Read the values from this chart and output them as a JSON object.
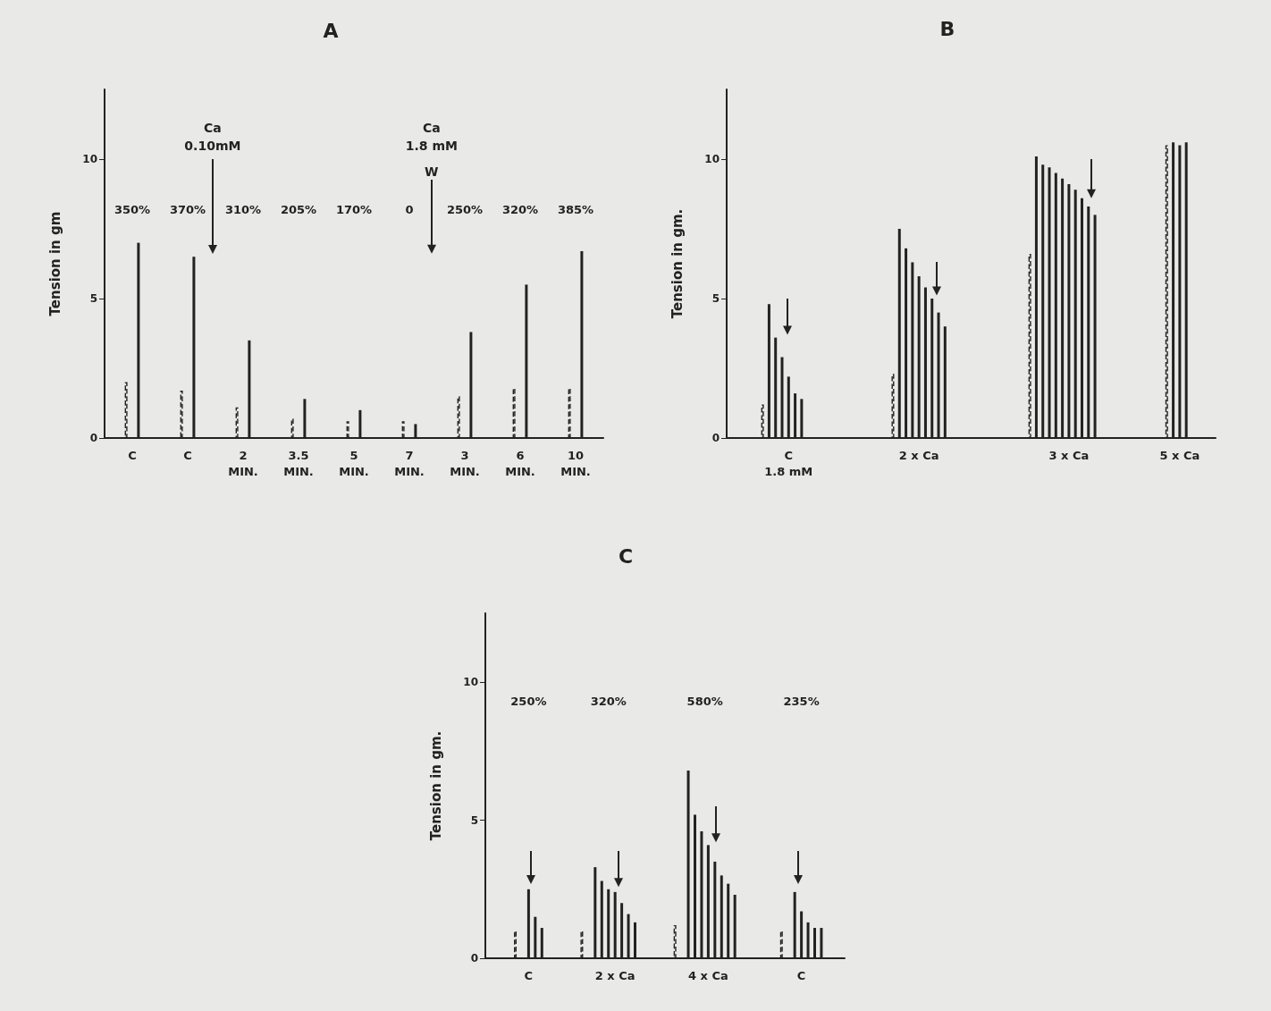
{
  "chart_data": [
    {
      "type": "bar",
      "title": "A",
      "ylabel": "Tension in gm",
      "categories": [
        "C",
        "C",
        "2\nMIN.",
        "3.5\nMIN.",
        "5\nMIN.",
        "7\nMIN.",
        "3\nMIN.",
        "6\nMIN.",
        "10\nMIN."
      ],
      "series": [
        {
          "color": "#222222",
          "line_style": "dashed",
          "values": [
            2.0,
            1.7,
            1.1,
            0.7,
            0.6,
            0.6,
            1.5,
            1.8,
            1.8
          ]
        },
        {
          "color": "#222222",
          "line_style": "solid",
          "values": [
            7.0,
            6.5,
            3.5,
            1.4,
            1.0,
            0.5,
            3.8,
            5.5,
            6.7
          ]
        }
      ],
      "ylim": [
        0,
        12.5
      ],
      "yticks": [
        0,
        5,
        10
      ],
      "annotations": [
        "350%",
        "370%",
        "310%",
        "205%",
        "170%",
        "0",
        "250%",
        "320%",
        "385%",
        "Ca\n0.10mM",
        "Ca\n1.8 mM",
        "W"
      ]
    },
    {
      "type": "bar",
      "title": "B",
      "ylabel": "Tension in gm.",
      "categories": [
        null,
        null,
        null,
        null,
        null,
        null,
        null,
        null,
        null,
        "C\n1.8 mM",
        null,
        null,
        null,
        null,
        null,
        null,
        null,
        null,
        null,
        null,
        null,
        null,
        null,
        null,
        null,
        null,
        null,
        null,
        null,
        "2 x Ca",
        null,
        null,
        null,
        null,
        null,
        null,
        null,
        null,
        null,
        null,
        null,
        null,
        null,
        null,
        null,
        null,
        null,
        null,
        null,
        null,
        null,
        null,
        "3 x Ca",
        null,
        null,
        null,
        null,
        null,
        null,
        null,
        null,
        null,
        null,
        null,
        null,
        null,
        null,
        null,
        null,
        "5 x Ca",
        null,
        null,
        null,
        null,
        null
      ],
      "series": [
        {
          "color": "#222222",
          "line_style": "dashed",
          "values": [
            null,
            null,
            null,
            null,
            null,
            1.2,
            null,
            null,
            null,
            null,
            null,
            null,
            null,
            null,
            null,
            null,
            null,
            null,
            null,
            null,
            null,
            null,
            null,
            null,
            null,
            2.3,
            null,
            null,
            null,
            null,
            null,
            null,
            null,
            null,
            null,
            null,
            null,
            null,
            null,
            null,
            null,
            null,
            null,
            null,
            null,
            null,
            6.6,
            null,
            null,
            null,
            null,
            null,
            null,
            null,
            null,
            null,
            null,
            null,
            null,
            null,
            null,
            null,
            null,
            null,
            null,
            null,
            null,
            10.5,
            null,
            null,
            null,
            null,
            null,
            null,
            null
          ]
        },
        {
          "color": "#222222",
          "line_style": "solid",
          "values": [
            null,
            null,
            null,
            null,
            null,
            null,
            4.8,
            3.6,
            2.9,
            2.2,
            1.6,
            1.4,
            null,
            null,
            null,
            null,
            null,
            null,
            null,
            null,
            null,
            null,
            null,
            null,
            null,
            null,
            7.5,
            6.8,
            6.3,
            5.8,
            5.4,
            5.0,
            4.5,
            4.0,
            null,
            null,
            null,
            null,
            null,
            null,
            null,
            null,
            null,
            null,
            null,
            null,
            null,
            10.1,
            9.8,
            9.7,
            9.5,
            9.3,
            9.1,
            8.9,
            8.6,
            8.3,
            8.0,
            null,
            null,
            null,
            null,
            null,
            null,
            null,
            null,
            null,
            null,
            null,
            10.6,
            10.5,
            10.6,
            null,
            null,
            null,
            null
          ]
        }
      ],
      "ylim": [
        0,
        12.5
      ],
      "yticks": [
        0,
        5,
        10
      ]
    },
    {
      "type": "bar",
      "title": "C",
      "ylabel": "Tension in gm.",
      "categories": [
        null,
        null,
        null,
        null,
        null,
        null,
        "C",
        null,
        null,
        null,
        null,
        null,
        null,
        null,
        null,
        null,
        null,
        null,
        null,
        "2 x Ca",
        null,
        null,
        null,
        null,
        null,
        null,
        null,
        null,
        null,
        null,
        null,
        null,
        null,
        "4 x Ca",
        null,
        null,
        null,
        null,
        null,
        null,
        null,
        null,
        null,
        null,
        null,
        null,
        null,
        "C",
        null,
        null,
        null,
        null,
        null,
        null
      ],
      "series": [
        {
          "color": "#222222",
          "line_style": "dashed",
          "values": [
            null,
            null,
            null,
            null,
            1.0,
            null,
            null,
            null,
            null,
            null,
            null,
            null,
            null,
            null,
            1.0,
            null,
            null,
            null,
            null,
            null,
            null,
            null,
            null,
            null,
            null,
            null,
            null,
            null,
            1.2,
            null,
            null,
            null,
            null,
            null,
            null,
            null,
            null,
            null,
            null,
            null,
            null,
            null,
            null,
            null,
            1.0,
            null,
            null,
            null,
            null,
            null,
            null,
            null,
            null,
            null
          ]
        },
        {
          "color": "#222222",
          "line_style": "solid",
          "values": [
            null,
            null,
            null,
            null,
            null,
            null,
            2.5,
            1.5,
            1.1,
            null,
            null,
            null,
            null,
            null,
            null,
            null,
            3.3,
            2.8,
            2.5,
            2.4,
            2.0,
            1.6,
            1.3,
            null,
            null,
            null,
            null,
            null,
            null,
            null,
            6.8,
            5.2,
            4.6,
            4.1,
            3.5,
            3.0,
            2.7,
            2.3,
            null,
            null,
            null,
            null,
            null,
            null,
            null,
            null,
            2.4,
            1.7,
            1.3,
            1.1,
            1.1,
            null,
            null,
            null
          ]
        }
      ],
      "ylim": [
        0,
        12.5
      ],
      "yticks": [
        0,
        5,
        10
      ],
      "annotations": [
        "250%",
        "320%",
        "580%",
        "235%"
      ]
    }
  ]
}
